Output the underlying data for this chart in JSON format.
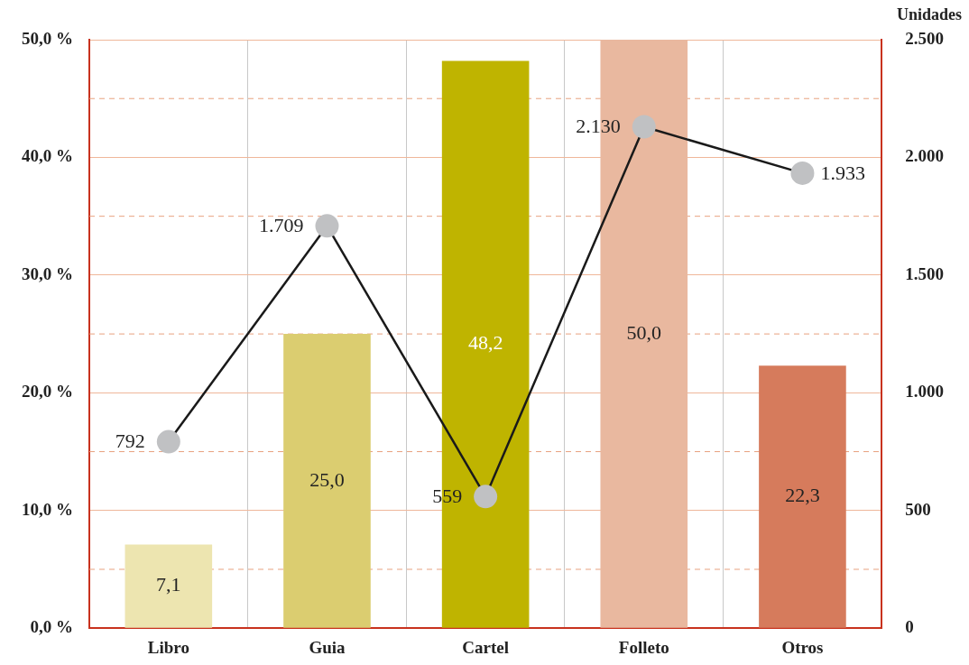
{
  "chart_data": {
    "type": "bar",
    "categories": [
      "Libro",
      "Guia",
      "Cartel",
      "Folleto",
      "Otros"
    ],
    "y2label": "Unidades",
    "series": [
      {
        "colors": [
          "#ede5b0",
          "#dbcd70",
          "#bfb400",
          "#e9b89f",
          "#d67b5c"
        ],
        "values": [
          7.1,
          25.0,
          48.2,
          50.0,
          22.3
        ],
        "value_labels": [
          "7,1",
          "25,0",
          "48,2",
          "50,0",
          "22,3"
        ]
      },
      {
        "type": "line",
        "axis": "y2",
        "color": "#1a1a1a",
        "marker": "circle",
        "values": [
          792,
          1709,
          559,
          2130,
          1933
        ],
        "value_labels": [
          "792",
          "1.709",
          "559",
          "2.130",
          "1.933"
        ]
      }
    ],
    "ylim": [
      0,
      50
    ],
    "yticks": [
      {
        "value": 0,
        "label": "0,0 %"
      },
      {
        "value": 5,
        "label": null
      },
      {
        "value": 10,
        "label": "10,0 %"
      },
      {
        "value": 15,
        "label": null
      },
      {
        "value": 20,
        "label": "20,0 %"
      },
      {
        "value": 25,
        "label": null
      },
      {
        "value": 30,
        "label": "30,0 %"
      },
      {
        "value": 35,
        "label": null
      },
      {
        "value": 40,
        "label": "40,0 %"
      },
      {
        "value": 45,
        "label": null
      },
      {
        "value": 50,
        "label": "50,0 %"
      }
    ],
    "y2lim": [
      0,
      2500
    ],
    "y2ticks": [
      0,
      {
        "value": 500,
        "label": "500"
      },
      {
        "value": 1000,
        "label": "1.000"
      },
      {
        "value": 1500,
        "label": "1.500"
      },
      {
        "value": 2000,
        "label": "2.000"
      },
      {
        "value": 2500,
        "label": "2.500"
      }
    ],
    "grid": true,
    "legend": false
  }
}
